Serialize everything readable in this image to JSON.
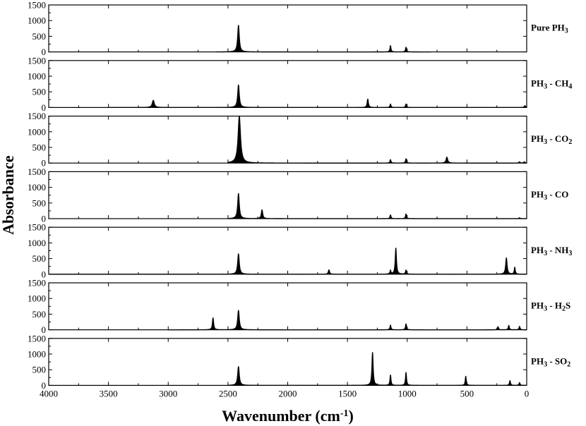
{
  "chart_data": {
    "type": "line",
    "xlabel": "Wavenumber (cm",
    "xlabel_superscript": "-1",
    "xlabel_close": ")",
    "ylabel": "Absorbance",
    "xlim": [
      4000,
      0
    ],
    "x_ticks": [
      4000,
      3500,
      3000,
      2500,
      2000,
      1500,
      1000,
      500,
      0
    ],
    "ylim": [
      0,
      1500
    ],
    "y_ticks": [
      0,
      500,
      1000,
      1500
    ],
    "grid": false,
    "line_color": "#000000",
    "panels": [
      {
        "label_parts": [
          {
            "t": "Pure PH"
          },
          {
            "t": "3",
            "sub": true
          }
        ],
        "range": [
          2600,
          800
        ],
        "peaks": [
          [
            2412,
            850,
            8
          ],
          [
            1140,
            200,
            5
          ],
          [
            1010,
            150,
            5
          ]
        ]
      },
      {
        "label_parts": [
          {
            "t": "PH"
          },
          {
            "t": "3",
            "sub": true
          },
          {
            "t": " - CH"
          },
          {
            "t": "4",
            "sub": true
          }
        ],
        "range": [
          3500,
          0
        ],
        "peaks": [
          [
            3125,
            230,
            10
          ],
          [
            2412,
            720,
            8
          ],
          [
            1330,
            270,
            6
          ],
          [
            1140,
            110,
            5
          ],
          [
            1010,
            110,
            5
          ],
          [
            15,
            60,
            6
          ]
        ]
      },
      {
        "label_parts": [
          {
            "t": "PH"
          },
          {
            "t": "3",
            "sub": true
          },
          {
            "t": " - CO"
          },
          {
            "t": "2",
            "sub": true
          }
        ],
        "range": [
          2500,
          0
        ],
        "peaks": [
          [
            2405,
            1500,
            12
          ],
          [
            1140,
            110,
            5
          ],
          [
            1010,
            140,
            5
          ],
          [
            668,
            190,
            8
          ],
          [
            60,
            40,
            6
          ],
          [
            20,
            40,
            6
          ]
        ]
      },
      {
        "label_parts": [
          {
            "t": "PH"
          },
          {
            "t": "3",
            "sub": true
          },
          {
            "t": " - CO"
          }
        ],
        "range": [
          2500,
          0
        ],
        "peaks": [
          [
            2412,
            800,
            8
          ],
          [
            2215,
            280,
            7
          ],
          [
            1140,
            120,
            5
          ],
          [
            1010,
            150,
            5
          ],
          [
            60,
            30,
            5
          ]
        ]
      },
      {
        "label_parts": [
          {
            "t": "PH"
          },
          {
            "t": "3",
            "sub": true
          },
          {
            "t": " - NH"
          },
          {
            "t": "3",
            "sub": true
          }
        ],
        "range": [
          4000,
          0
        ],
        "peaks": [
          [
            2412,
            650,
            8
          ],
          [
            1655,
            140,
            6
          ],
          [
            1140,
            120,
            5
          ],
          [
            1095,
            830,
            6
          ],
          [
            1010,
            130,
            5
          ],
          [
            170,
            520,
            7
          ],
          [
            100,
            220,
            5
          ]
        ]
      },
      {
        "label_parts": [
          {
            "t": "PH"
          },
          {
            "t": "3",
            "sub": true
          },
          {
            "t": " - H"
          },
          {
            "t": "2",
            "sub": true
          },
          {
            "t": "S"
          }
        ],
        "range": [
          3000,
          0
        ],
        "peaks": [
          [
            2625,
            380,
            6
          ],
          [
            2412,
            620,
            8
          ],
          [
            1140,
            150,
            5
          ],
          [
            1010,
            190,
            5
          ],
          [
            240,
            100,
            5
          ],
          [
            150,
            140,
            5
          ],
          [
            60,
            110,
            5
          ]
        ]
      },
      {
        "label_parts": [
          {
            "t": "PH"
          },
          {
            "t": "3",
            "sub": true
          },
          {
            "t": " - SO"
          },
          {
            "t": "2",
            "sub": true
          }
        ],
        "range": [
          2500,
          0
        ],
        "peaks": [
          [
            2412,
            600,
            8
          ],
          [
            1290,
            1050,
            6
          ],
          [
            1140,
            330,
            5
          ],
          [
            1010,
            410,
            5
          ],
          [
            510,
            290,
            5
          ],
          [
            140,
            150,
            5
          ],
          [
            60,
            90,
            5
          ]
        ]
      }
    ]
  }
}
